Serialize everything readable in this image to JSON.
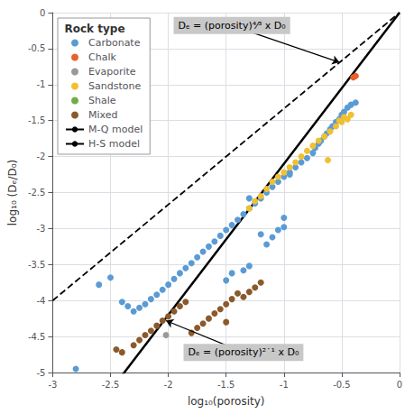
{
  "chart_data": {
    "type": "scatter",
    "xlabel": "log₁₀(porosity)",
    "ylabel": "log₁₀ (Dₑ/D₀)",
    "xlim": [
      -3,
      0
    ],
    "ylim": [
      -5,
      0
    ],
    "xticks": [
      -3.0,
      -2.5,
      -2.0,
      -1.5,
      -1.0,
      -0.5,
      0.0
    ],
    "yticks": [
      0.0,
      -0.5,
      -1.0,
      -1.5,
      -2.0,
      -2.5,
      -3.0,
      -3.5,
      -4.0,
      -4.5,
      -5.0
    ],
    "grid": true,
    "legend": "upper left",
    "legend_title": "Rock type",
    "series": [
      {
        "name": "Carbonate",
        "type": "scatter",
        "marker": "circle",
        "color": "#5B9BD5",
        "values": [
          [
            -0.38,
            -1.25
          ],
          [
            -0.42,
            -1.28
          ],
          [
            -0.45,
            -1.32
          ],
          [
            -0.48,
            -1.38
          ],
          [
            -0.5,
            -1.42
          ],
          [
            -0.52,
            -1.48
          ],
          [
            -0.55,
            -1.52
          ],
          [
            -0.58,
            -1.58
          ],
          [
            -0.6,
            -1.62
          ],
          [
            -0.63,
            -1.68
          ],
          [
            -0.65,
            -1.72
          ],
          [
            -0.68,
            -1.78
          ],
          [
            -0.7,
            -1.82
          ],
          [
            -0.73,
            -1.88
          ],
          [
            -0.75,
            -1.95
          ],
          [
            -0.8,
            -2.02
          ],
          [
            -0.85,
            -2.08
          ],
          [
            -0.9,
            -2.15
          ],
          [
            -0.95,
            -2.22
          ],
          [
            -1.0,
            -2.28
          ],
          [
            -1.05,
            -2.35
          ],
          [
            -1.1,
            -2.42
          ],
          [
            -1.15,
            -2.5
          ],
          [
            -1.2,
            -2.58
          ],
          [
            -1.25,
            -2.65
          ],
          [
            -1.3,
            -2.72
          ],
          [
            -1.35,
            -2.8
          ],
          [
            -1.4,
            -2.88
          ],
          [
            -1.45,
            -2.95
          ],
          [
            -1.5,
            -3.02
          ],
          [
            -1.55,
            -3.1
          ],
          [
            -1.6,
            -3.18
          ],
          [
            -1.65,
            -3.25
          ],
          [
            -1.7,
            -3.32
          ],
          [
            -1.75,
            -3.4
          ],
          [
            -1.8,
            -3.48
          ],
          [
            -1.85,
            -3.55
          ],
          [
            -1.9,
            -3.62
          ],
          [
            -1.95,
            -3.7
          ],
          [
            -2.0,
            -3.78
          ],
          [
            -2.05,
            -3.85
          ],
          [
            -2.1,
            -3.92
          ],
          [
            -2.15,
            -3.98
          ],
          [
            -2.2,
            -4.05
          ],
          [
            -2.25,
            -4.1
          ],
          [
            -2.3,
            -4.15
          ],
          [
            -2.35,
            -4.08
          ],
          [
            -2.4,
            -4.02
          ],
          [
            -2.5,
            -3.68
          ],
          [
            -2.6,
            -3.78
          ],
          [
            -1.0,
            -2.85
          ],
          [
            -1.05,
            -3.02
          ],
          [
            -1.1,
            -3.12
          ],
          [
            -1.15,
            -3.22
          ],
          [
            -1.2,
            -3.08
          ],
          [
            -1.3,
            -3.52
          ],
          [
            -1.35,
            -3.58
          ],
          [
            -1.45,
            -3.62
          ],
          [
            -1.5,
            -3.72
          ],
          [
            -2.8,
            -4.95
          ],
          [
            -1.3,
            -2.58
          ],
          [
            -0.95,
            -2.25
          ],
          [
            -1.0,
            -2.98
          ]
        ]
      },
      {
        "name": "Chalk",
        "type": "scatter",
        "marker": "circle",
        "color": "#E8602A",
        "values": [
          [
            -0.4,
            -0.9
          ],
          [
            -0.38,
            -0.88
          ]
        ]
      },
      {
        "name": "Evaporite",
        "type": "scatter",
        "marker": "circle",
        "color": "#999999",
        "values": [
          [
            -2.02,
            -4.48
          ]
        ]
      },
      {
        "name": "Sandstone",
        "type": "scatter",
        "marker": "circle",
        "color": "#F0C030",
        "values": [
          [
            -0.42,
            -1.42
          ],
          [
            -0.45,
            -1.48
          ],
          [
            -0.48,
            -1.45
          ],
          [
            -0.5,
            -1.52
          ],
          [
            -0.52,
            -1.5
          ],
          [
            -0.55,
            -1.58
          ],
          [
            -0.6,
            -1.65
          ],
          [
            -0.65,
            -1.72
          ],
          [
            -0.7,
            -1.78
          ],
          [
            -0.75,
            -1.85
          ],
          [
            -0.8,
            -1.92
          ],
          [
            -0.85,
            -2.0
          ],
          [
            -0.9,
            -2.08
          ],
          [
            -0.95,
            -2.15
          ],
          [
            -1.0,
            -2.22
          ],
          [
            -1.05,
            -2.28
          ],
          [
            -1.1,
            -2.35
          ],
          [
            -1.15,
            -2.45
          ],
          [
            -1.2,
            -2.55
          ],
          [
            -1.25,
            -2.62
          ],
          [
            -1.3,
            -2.72
          ],
          [
            -0.62,
            -2.05
          ]
        ]
      },
      {
        "name": "Shale",
        "type": "scatter",
        "marker": "circle",
        "color": "#70AD47",
        "values": []
      },
      {
        "name": "Mixed",
        "type": "scatter",
        "marker": "circle",
        "color": "#8B5A2B",
        "values": [
          [
            -1.95,
            -4.15
          ],
          [
            -2.0,
            -4.22
          ],
          [
            -2.05,
            -4.28
          ],
          [
            -2.1,
            -4.35
          ],
          [
            -2.15,
            -4.42
          ],
          [
            -2.2,
            -4.48
          ],
          [
            -2.25,
            -4.55
          ],
          [
            -2.3,
            -4.62
          ],
          [
            -2.4,
            -4.72
          ],
          [
            -1.4,
            -3.9
          ],
          [
            -1.45,
            -3.98
          ],
          [
            -1.5,
            -4.05
          ],
          [
            -1.55,
            -4.12
          ],
          [
            -1.6,
            -4.18
          ],
          [
            -1.65,
            -4.25
          ],
          [
            -1.7,
            -4.32
          ],
          [
            -1.75,
            -4.38
          ],
          [
            -1.8,
            -4.45
          ],
          [
            -1.2,
            -3.75
          ],
          [
            -1.25,
            -3.82
          ],
          [
            -1.3,
            -3.88
          ],
          [
            -1.35,
            -3.95
          ],
          [
            -1.9,
            -4.08
          ],
          [
            -1.85,
            -4.02
          ],
          [
            -1.5,
            -4.3
          ],
          [
            -2.45,
            -4.68
          ]
        ]
      },
      {
        "name": "M-Q model",
        "type": "line",
        "line_style": "dashed",
        "color": "#000000",
        "values": [
          [
            -3,
            -3.9999
          ],
          [
            0,
            0
          ]
        ]
      },
      {
        "name": "H-S model",
        "type": "line",
        "line_style": "solid",
        "color": "#000000",
        "values": [
          [
            -3,
            -6.3
          ],
          [
            0,
            0
          ]
        ]
      }
    ],
    "annotations": [
      {
        "text": "Dₑ = (porosity)⁴⁄³ x D₀",
        "xy": [
          -0.52,
          -0.69
        ],
        "xytext": [
          -1.45,
          -0.18
        ]
      },
      {
        "text": "Dₑ = (porosity)²˙¹ x D₀",
        "xy": [
          -2.02,
          -4.28
        ],
        "xytext": [
          -1.35,
          -4.72
        ]
      }
    ]
  }
}
